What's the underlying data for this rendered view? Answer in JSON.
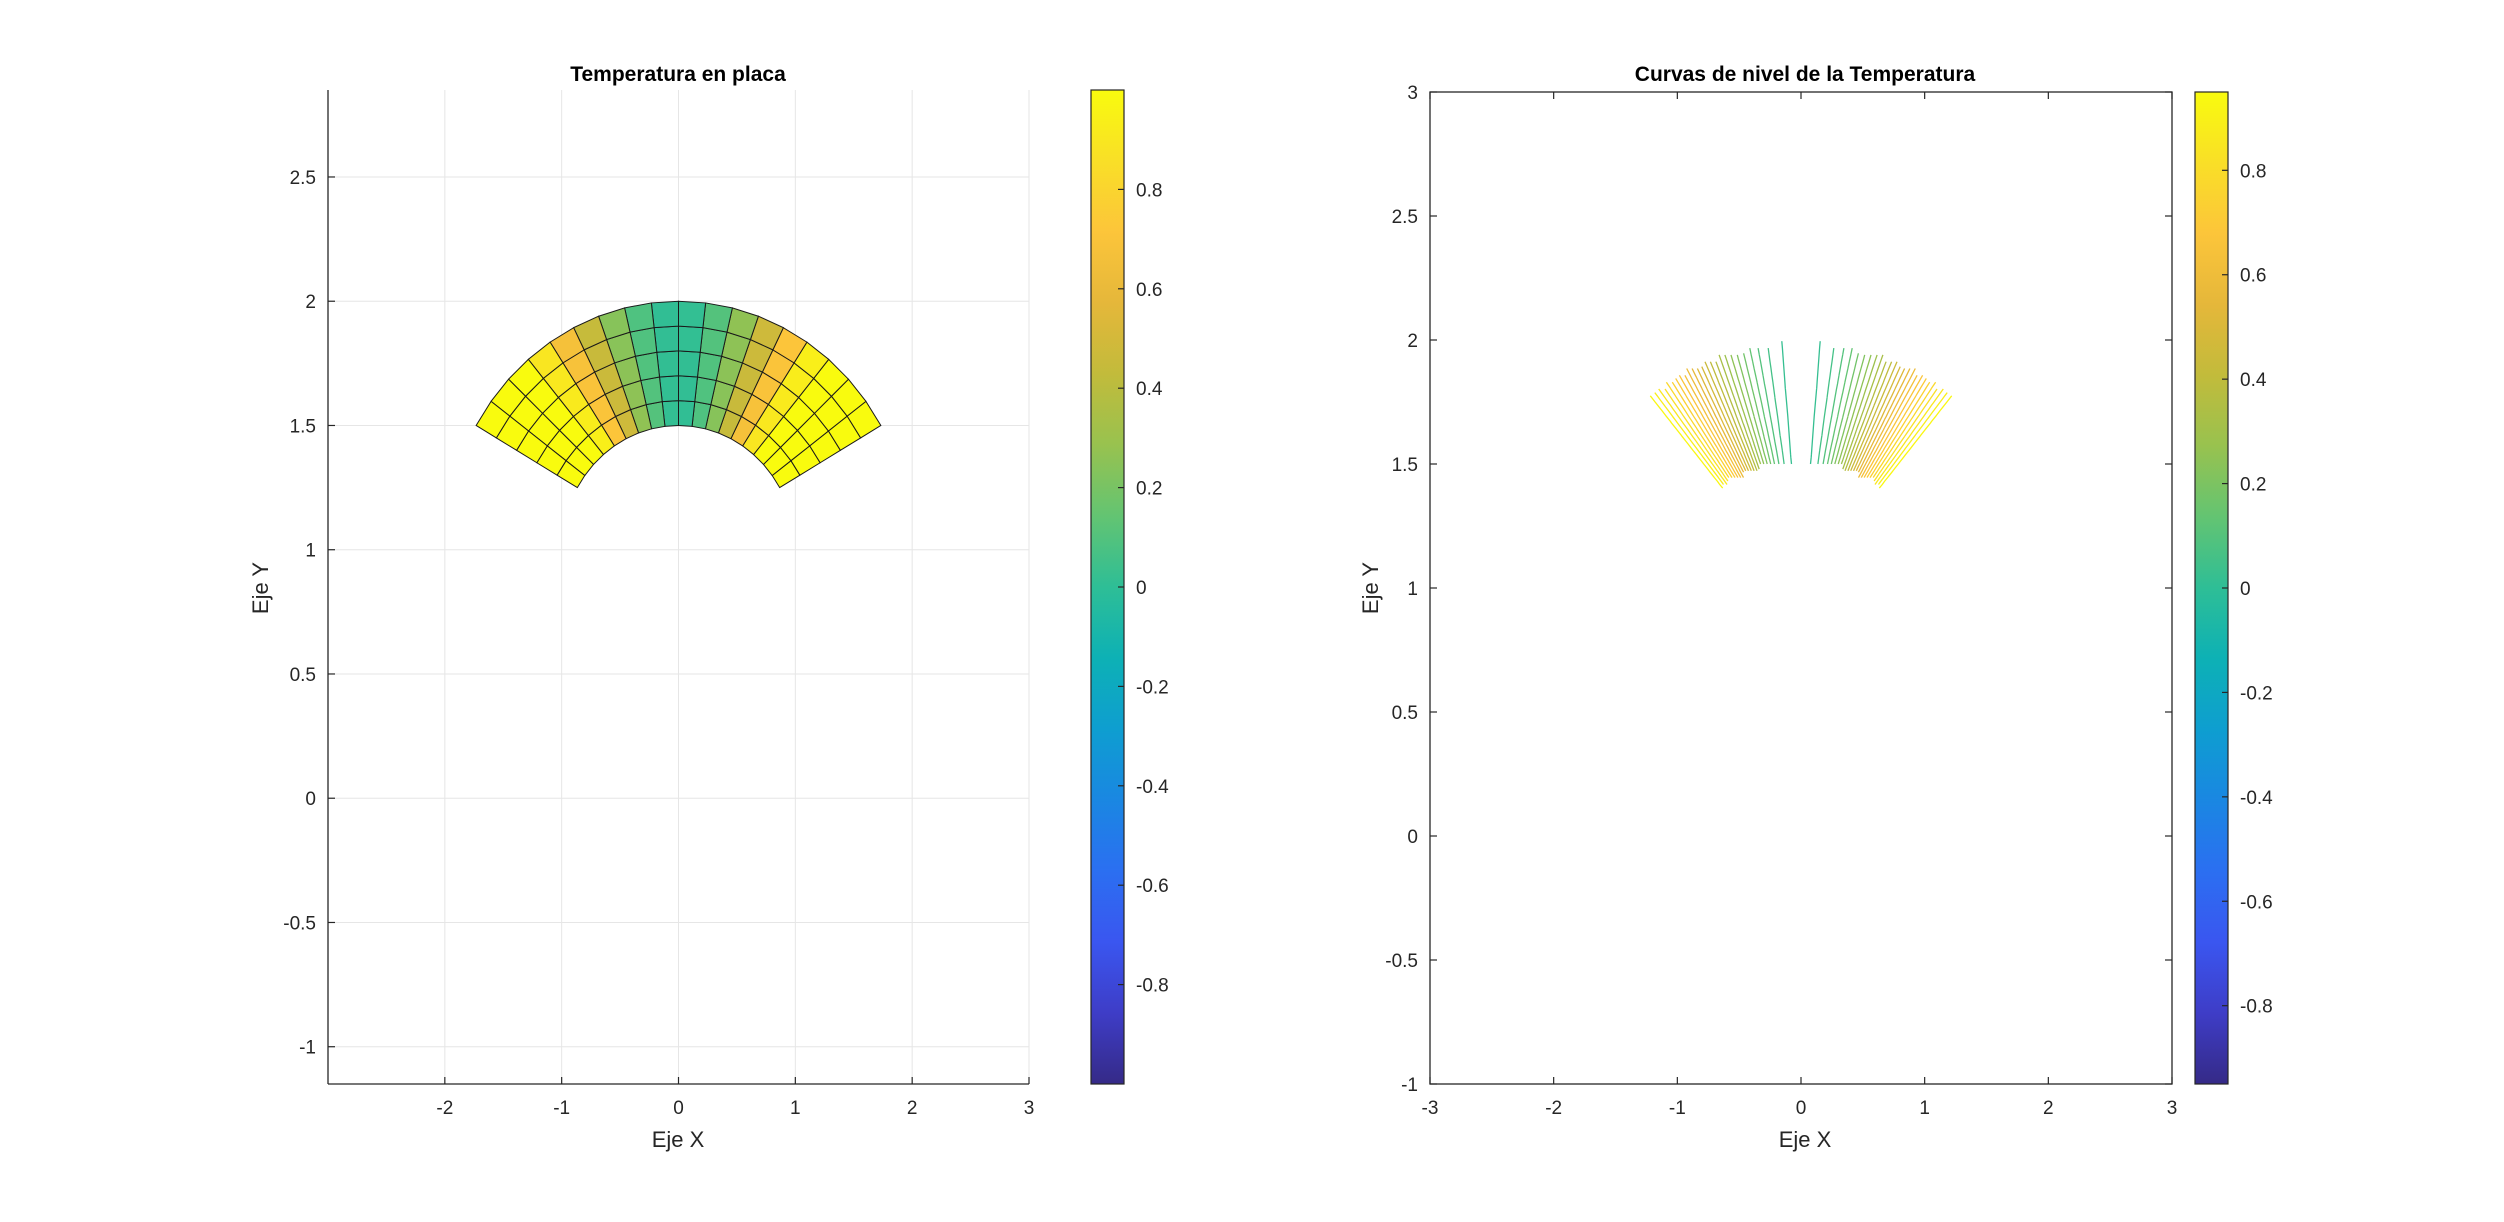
{
  "chart_data": [
    {
      "type": "heatmap",
      "title": "Temperatura en placa",
      "xlabel": "Eje X",
      "ylabel": "Eje Y",
      "xlim": [
        -3,
        3
      ],
      "ylim": [
        -1.15,
        2.85
      ],
      "xticks": [
        "-2",
        "-1",
        "0",
        "1",
        "2",
        "3"
      ],
      "yticks": [
        "-1",
        "-0.5",
        "0",
        "0.5",
        "1",
        "1.5",
        "2",
        "2.5"
      ],
      "grid": true,
      "colormap": "parula",
      "clim": [
        -1,
        1
      ],
      "colorbar_ticks": [
        "-0.8",
        "-0.6",
        "-0.4",
        "-0.2",
        "0",
        "0.2",
        "0.4",
        "0.6",
        "0.8"
      ],
      "domain": {
        "shape": "half annulus",
        "inner_radius": 1,
        "outer_radius": 2,
        "angle_start_deg": 30,
        "angle_end_deg": 150,
        "y_scale": 0.5,
        "radial_cells": 5,
        "angular_cells": 18
      },
      "function": "sin(2*theta) * cos(theta)"
    },
    {
      "type": "contour",
      "title": "Curvas de nivel de la Temperatura",
      "xlabel": "Eje X",
      "ylabel": "Eje Y",
      "xlim": [
        -3,
        3
      ],
      "ylim": [
        -1,
        3
      ],
      "xticks": [
        "-3",
        "-2",
        "-1",
        "0",
        "1",
        "2",
        "3"
      ],
      "yticks": [
        "-1",
        "-0.5",
        "0",
        "0.5",
        "1",
        "1.5",
        "2",
        "2.5",
        "3"
      ],
      "grid": false,
      "colormap": "parula",
      "clim": [
        -0.95,
        0.95
      ],
      "colorbar_ticks": [
        "-0.8",
        "-0.6",
        "-0.4",
        "-0.2",
        "0",
        "0.2",
        "0.4",
        "0.6",
        "0.8"
      ],
      "levels": 50
    }
  ],
  "colors": {
    "parula": [
      "#352a87",
      "#3e3dc7",
      "#3a56f0",
      "#2b6ff1",
      "#1a87e2",
      "#0e9ed0",
      "#0db1b5",
      "#2ebe96",
      "#63c472",
      "#98c24f",
      "#c2bb3b",
      "#e5b73a",
      "#fcc53a",
      "#f9df27",
      "#f9fb0e"
    ],
    "axes": "#262626",
    "grid": "#e6e6e6",
    "edge": "#1a1a1a"
  }
}
